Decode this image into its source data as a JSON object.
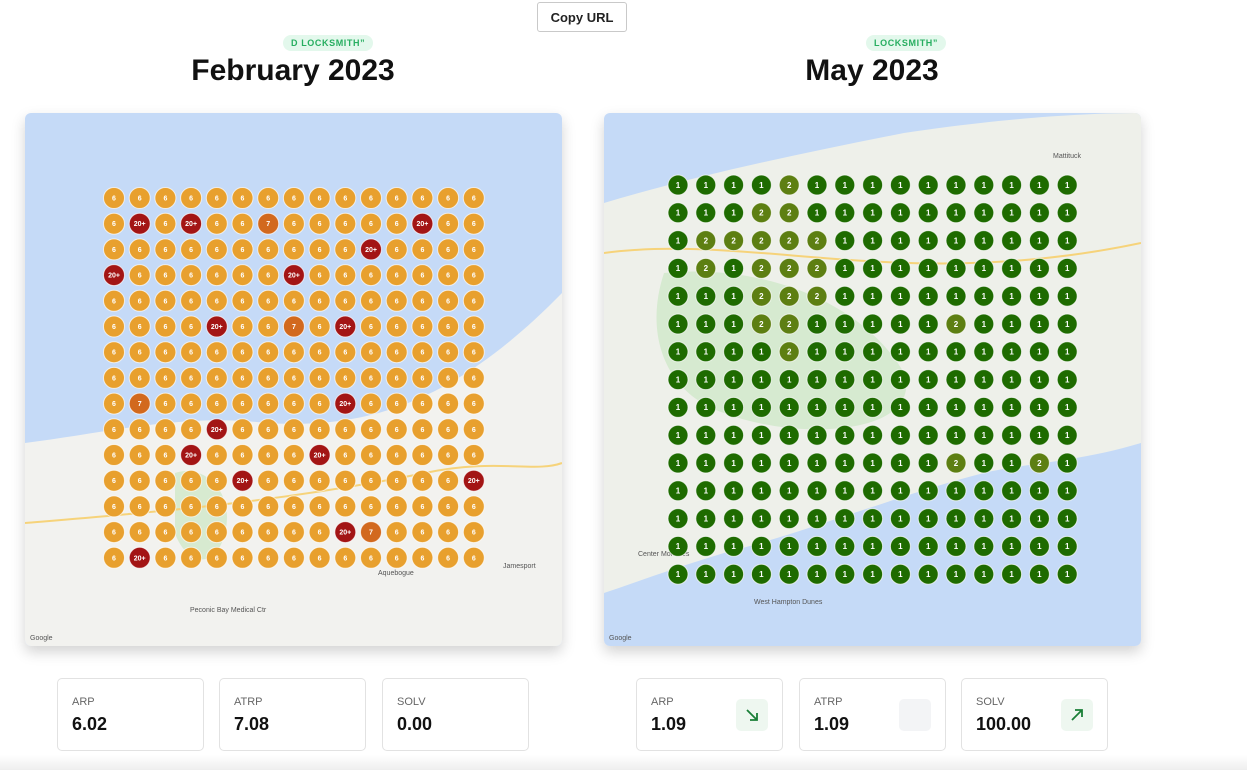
{
  "button": "Copy URL",
  "panels": [
    {
      "badge": "D LOCKSMITH”",
      "title": "February 2023",
      "grid": [
        [
          6,
          6,
          6,
          6,
          6,
          6,
          6,
          6,
          6,
          6,
          6,
          6,
          6,
          6,
          6
        ],
        [
          6,
          "20+",
          6,
          "20+",
          6,
          6,
          7,
          6,
          6,
          6,
          6,
          6,
          "20+",
          6,
          6
        ],
        [
          6,
          6,
          6,
          6,
          6,
          6,
          6,
          6,
          6,
          6,
          "20+",
          6,
          6,
          6,
          6
        ],
        [
          "20+",
          6,
          6,
          6,
          6,
          6,
          6,
          "20+",
          6,
          6,
          6,
          6,
          6,
          6,
          6
        ],
        [
          6,
          6,
          6,
          6,
          6,
          6,
          6,
          6,
          6,
          6,
          6,
          6,
          6,
          6,
          6
        ],
        [
          6,
          6,
          6,
          6,
          "20+",
          6,
          6,
          7,
          6,
          "20+",
          6,
          6,
          6,
          6,
          6
        ],
        [
          6,
          6,
          6,
          6,
          6,
          6,
          6,
          6,
          6,
          6,
          6,
          6,
          6,
          6,
          6
        ],
        [
          6,
          6,
          6,
          6,
          6,
          6,
          6,
          6,
          6,
          6,
          6,
          6,
          6,
          6,
          6
        ],
        [
          6,
          7,
          6,
          6,
          6,
          6,
          6,
          6,
          6,
          "20+",
          6,
          6,
          6,
          6,
          6
        ],
        [
          6,
          6,
          6,
          6,
          "20+",
          6,
          6,
          6,
          6,
          6,
          6,
          6,
          6,
          6,
          6
        ],
        [
          6,
          6,
          6,
          "20+",
          6,
          6,
          6,
          6,
          "20+",
          6,
          6,
          6,
          6,
          6,
          6
        ],
        [
          6,
          6,
          6,
          6,
          6,
          "20+",
          6,
          6,
          6,
          6,
          6,
          6,
          6,
          6,
          "20+"
        ],
        [
          6,
          6,
          6,
          6,
          6,
          6,
          6,
          6,
          6,
          6,
          6,
          6,
          6,
          6,
          6
        ],
        [
          6,
          6,
          6,
          6,
          6,
          6,
          6,
          6,
          6,
          "20+",
          7,
          6,
          6,
          6,
          6
        ],
        [
          6,
          "20+",
          6,
          6,
          6,
          6,
          6,
          6,
          6,
          6,
          6,
          6,
          6,
          6,
          6
        ]
      ],
      "map_labels": [
        "Aquebogue",
        "Jamesport",
        "Peconic Bay Medical Ctr",
        "Google"
      ],
      "stats": [
        {
          "label": "ARP",
          "value": "6.02"
        },
        {
          "label": "ATRP",
          "value": "7.08"
        },
        {
          "label": "SOLV",
          "value": "0.00"
        }
      ]
    },
    {
      "badge": "LOCKSMITH”",
      "title": "May 2023",
      "grid": [
        [
          1,
          1,
          1,
          1,
          2,
          1,
          1,
          1,
          1,
          1,
          1,
          1,
          1,
          1,
          1
        ],
        [
          1,
          1,
          1,
          2,
          2,
          1,
          1,
          1,
          1,
          1,
          1,
          1,
          1,
          1,
          1
        ],
        [
          1,
          2,
          2,
          2,
          2,
          2,
          1,
          1,
          1,
          1,
          1,
          1,
          1,
          1,
          1
        ],
        [
          1,
          2,
          1,
          2,
          2,
          2,
          1,
          1,
          1,
          1,
          1,
          1,
          1,
          1,
          1
        ],
        [
          1,
          1,
          1,
          2,
          2,
          2,
          1,
          1,
          1,
          1,
          1,
          1,
          1,
          1,
          1
        ],
        [
          1,
          1,
          1,
          2,
          2,
          1,
          1,
          1,
          1,
          1,
          2,
          1,
          1,
          1,
          1
        ],
        [
          1,
          1,
          1,
          1,
          2,
          1,
          1,
          1,
          1,
          1,
          1,
          1,
          1,
          1,
          1
        ],
        [
          1,
          1,
          1,
          1,
          1,
          1,
          1,
          1,
          1,
          1,
          1,
          1,
          1,
          1,
          1
        ],
        [
          1,
          1,
          1,
          1,
          1,
          1,
          1,
          1,
          1,
          1,
          1,
          1,
          1,
          1,
          1
        ],
        [
          1,
          1,
          1,
          1,
          1,
          1,
          1,
          1,
          1,
          1,
          1,
          1,
          1,
          1,
          1
        ],
        [
          1,
          1,
          1,
          1,
          1,
          1,
          1,
          1,
          1,
          1,
          2,
          1,
          1,
          2,
          1
        ],
        [
          1,
          1,
          1,
          1,
          1,
          1,
          1,
          1,
          1,
          1,
          1,
          1,
          1,
          1,
          1
        ],
        [
          1,
          1,
          1,
          1,
          1,
          1,
          1,
          1,
          1,
          1,
          1,
          1,
          1,
          1,
          1
        ],
        [
          1,
          1,
          1,
          1,
          1,
          1,
          1,
          1,
          1,
          1,
          1,
          1,
          1,
          1,
          1
        ],
        [
          1,
          1,
          1,
          1,
          1,
          1,
          1,
          1,
          1,
          1,
          1,
          1,
          1,
          1,
          1
        ]
      ],
      "map_labels": [
        "Mattituck",
        "Center Moriches",
        "West Hampton Dunes",
        "Google"
      ],
      "stats": [
        {
          "label": "ARP",
          "value": "1.09",
          "trend": "down"
        },
        {
          "label": "ATRP",
          "value": "1.09",
          "trend": "flat"
        },
        {
          "label": "SOLV",
          "value": "100.00",
          "trend": "up"
        }
      ]
    }
  ]
}
